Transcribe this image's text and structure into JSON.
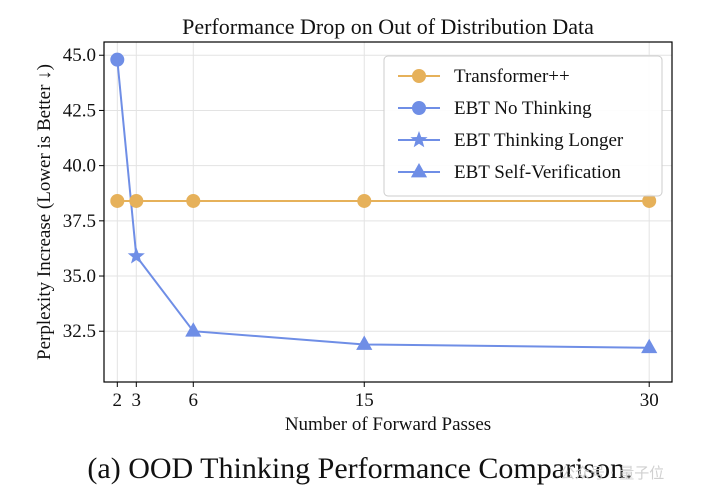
{
  "chart_data": {
    "type": "line",
    "title": "Performance Drop on Out of Distribution Data",
    "xlabel": "Number of Forward Passes",
    "ylabel": "Perplexity Increase (Lower is Better ↓)",
    "xlim": [
      1.3,
      31.2
    ],
    "ylim": [
      30.2,
      45.6
    ],
    "xticks": [
      2,
      3,
      6,
      15,
      30
    ],
    "xtick_labels": [
      "2",
      "3",
      "6",
      "15",
      "30"
    ],
    "yticks": [
      32.5,
      35.0,
      37.5,
      40.0,
      42.5,
      45.0
    ],
    "ytick_labels": [
      "32.5",
      "35.0",
      "37.5",
      "40.0",
      "42.5",
      "45.0"
    ],
    "grid": true,
    "legend_position": "top-right",
    "series": [
      {
        "name": "Transformer++",
        "color": "#e6b15a",
        "marker": "circle",
        "x": [
          2,
          3,
          6,
          15,
          30
        ],
        "y": [
          38.4,
          38.4,
          38.4,
          38.4,
          38.4
        ]
      },
      {
        "name": "EBT No Thinking",
        "color": "#6f8ee6",
        "marker": "circle",
        "x": [
          2
        ],
        "y": [
          44.8
        ]
      },
      {
        "name": "EBT Thinking Longer",
        "color": "#6f8ee6",
        "marker": "star",
        "x": [
          3
        ],
        "y": [
          35.9
        ]
      },
      {
        "name": "EBT Self-Verification",
        "color": "#6f8ee6",
        "marker": "triangle",
        "x": [
          6,
          15,
          30
        ],
        "y": [
          32.5,
          31.9,
          31.75
        ]
      }
    ],
    "connector": {
      "color": "#6f8ee6",
      "x": [
        2,
        3,
        6,
        15,
        30
      ],
      "y": [
        44.8,
        35.9,
        32.5,
        31.9,
        31.75
      ]
    }
  },
  "caption": "(a) OOD Thinking Performance Comparison.",
  "watermark": "公众号 · 量子位"
}
